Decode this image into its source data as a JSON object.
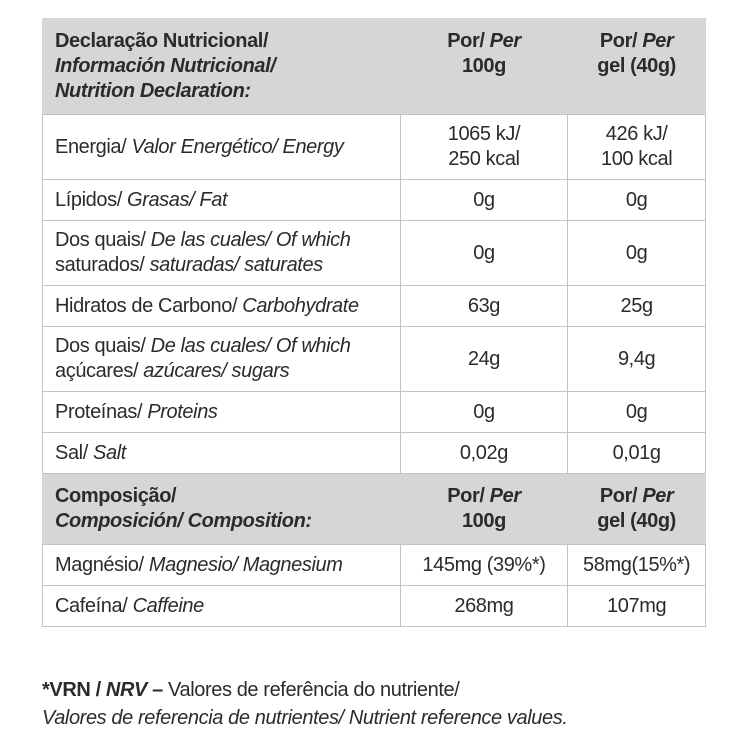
{
  "sections": [
    {
      "header": [
        [
          [
            {
              "text": "Declaração Nutricional/"
            }
          ],
          [
            {
              "text": "Información Nutricional/",
              "italic": true
            }
          ],
          [
            {
              "text": "Nutrition Declaration:",
              "italic": true
            }
          ]
        ],
        [
          [
            {
              "text": "Por/"
            },
            {
              "text": "Per",
              "italic": true
            }
          ],
          [
            {
              "text": "100g"
            }
          ]
        ],
        [
          [
            {
              "text": "Por/"
            },
            {
              "text": "Per",
              "italic": true
            }
          ],
          [
            {
              "text": "gel (40g)"
            }
          ]
        ]
      ],
      "rows": [
        [
          [
            [
              {
                "text": "Energia/"
              },
              {
                "text": "Valor Energético/ Energy",
                "italic": true
              }
            ]
          ],
          [
            [
              {
                "text": "1065 kJ/"
              }
            ],
            [
              {
                "text": "250 kcal"
              }
            ]
          ],
          [
            [
              {
                "text": "426 kJ/"
              }
            ],
            [
              {
                "text": "100 kcal"
              }
            ]
          ]
        ],
        [
          [
            [
              {
                "text": "Lípidos/"
              },
              {
                "text": "Grasas/ Fat",
                "italic": true
              }
            ]
          ],
          [
            [
              {
                "text": "0g"
              }
            ]
          ],
          [
            [
              {
                "text": "0g"
              }
            ]
          ]
        ],
        [
          [
            [
              {
                "text": "Dos quais/"
              },
              {
                "text": "De las cuales/ Of which",
                "italic": true
              }
            ],
            [
              {
                "text": "saturados/"
              },
              {
                "text": "saturadas/ saturates",
                "italic": true
              }
            ]
          ],
          [
            [
              {
                "text": "0g"
              }
            ]
          ],
          [
            [
              {
                "text": "0g"
              }
            ]
          ]
        ],
        [
          [
            [
              {
                "text": "Hidratos de Carbono/"
              },
              {
                "text": "Carbohydrate",
                "italic": true
              }
            ]
          ],
          [
            [
              {
                "text": "63g"
              }
            ]
          ],
          [
            [
              {
                "text": "25g"
              }
            ]
          ]
        ],
        [
          [
            [
              {
                "text": "Dos quais/"
              },
              {
                "text": "De las cuales/ Of which",
                "italic": true
              }
            ],
            [
              {
                "text": "açúcares/"
              },
              {
                "text": "azúcares/ sugars",
                "italic": true
              }
            ]
          ],
          [
            [
              {
                "text": "24g"
              }
            ]
          ],
          [
            [
              {
                "text": "9,4g"
              }
            ]
          ]
        ],
        [
          [
            [
              {
                "text": "Proteínas/"
              },
              {
                "text": "Proteins",
                "italic": true
              }
            ]
          ],
          [
            [
              {
                "text": "0g"
              }
            ]
          ],
          [
            [
              {
                "text": "0g"
              }
            ]
          ]
        ],
        [
          [
            [
              {
                "text": "Sal/"
              },
              {
                "text": "Salt",
                "italic": true
              }
            ]
          ],
          [
            [
              {
                "text": "0,02g"
              }
            ]
          ],
          [
            [
              {
                "text": "0,01g"
              }
            ]
          ]
        ]
      ]
    },
    {
      "header": [
        [
          [
            {
              "text": "Composição/"
            }
          ],
          [
            {
              "text": "Composición/ Composition:",
              "italic": true
            }
          ]
        ],
        [
          [
            {
              "text": "Por/"
            },
            {
              "text": "Per",
              "italic": true
            }
          ],
          [
            {
              "text": "100g"
            }
          ]
        ],
        [
          [
            {
              "text": "Por/"
            },
            {
              "text": "Per",
              "italic": true
            }
          ],
          [
            {
              "text": "gel (40g)"
            }
          ]
        ]
      ],
      "rows": [
        [
          [
            [
              {
                "text": "Magnésio/"
              },
              {
                "text": "Magnesio/ Magnesium",
                "italic": true
              }
            ]
          ],
          [
            [
              {
                "text": "145mg (39%*)"
              }
            ]
          ],
          [
            [
              {
                "text": "58mg(15%*)"
              }
            ]
          ]
        ],
        [
          [
            [
              {
                "text": "Cafeína/"
              },
              {
                "text": "Caffeine",
                "italic": true
              }
            ]
          ],
          [
            [
              {
                "text": "268mg"
              }
            ]
          ],
          [
            [
              {
                "text": "107mg"
              }
            ]
          ]
        ]
      ]
    }
  ],
  "footer": [
    [
      {
        "text": "*VRN /",
        "bold": true
      },
      {
        "text": "NRV",
        "bold": true,
        "italic": true
      },
      {
        "text": "–",
        "bold": true
      },
      {
        "text": "Valores de referência do nutriente/"
      }
    ],
    [
      {
        "text": "Valores de referencia de nutrientes/ Nutrient reference values.",
        "italic": true
      }
    ]
  ]
}
